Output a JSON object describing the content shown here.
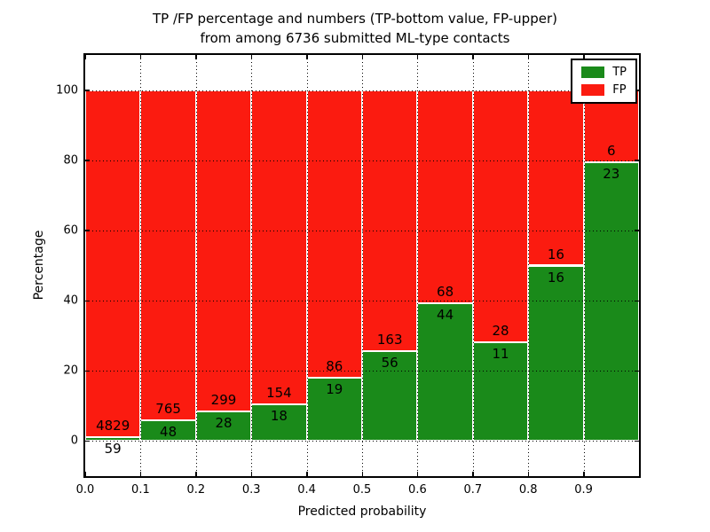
{
  "chart_data": {
    "type": "bar",
    "variant": "stacked-percentage-histogram",
    "title": "TP /FP percentage and numbers (TP-bottom value, FP-upper)\nfrom among 6736 submitted ML-type contacts",
    "title_line1": "TP /FP percentage and numbers (TP-bottom value, FP-upper)",
    "title_line2": "from among 6736 submitted ML-type contacts",
    "xlabel": "Predicted probability",
    "ylabel": "Percentage",
    "total_submitted": 6736,
    "xlim": [
      0.0,
      1.0
    ],
    "ylim": [
      -10,
      110
    ],
    "bin_edges": [
      0.0,
      0.1,
      0.2,
      0.3,
      0.4,
      0.5,
      0.6,
      0.7,
      0.8,
      0.9,
      1.0
    ],
    "x_tick_labels": [
      "0.0",
      "0.1",
      "0.2",
      "0.3",
      "0.4",
      "0.5",
      "0.6",
      "0.7",
      "0.8",
      "0.9"
    ],
    "y_ticks": [
      0,
      20,
      40,
      60,
      80,
      100
    ],
    "grid": {
      "style": "dotted",
      "color": "#000000"
    },
    "legend": {
      "position": "upper-right",
      "entries": [
        {
          "label": "TP",
          "color": "#1a8a1a"
        },
        {
          "label": "FP",
          "color": "#fb1b10"
        }
      ]
    },
    "series": [
      {
        "name": "TP",
        "color": "#1a8a1a",
        "counts": [
          59,
          48,
          28,
          18,
          19,
          56,
          44,
          11,
          16,
          23
        ]
      },
      {
        "name": "FP",
        "color": "#fb1b10",
        "counts": [
          4829,
          765,
          299,
          154,
          86,
          163,
          68,
          28,
          16,
          6
        ]
      }
    ],
    "tp_percent_of_bin": [
      1.21,
      5.9,
      8.56,
      10.47,
      18.1,
      25.57,
      39.29,
      28.21,
      50.0,
      79.31
    ]
  }
}
